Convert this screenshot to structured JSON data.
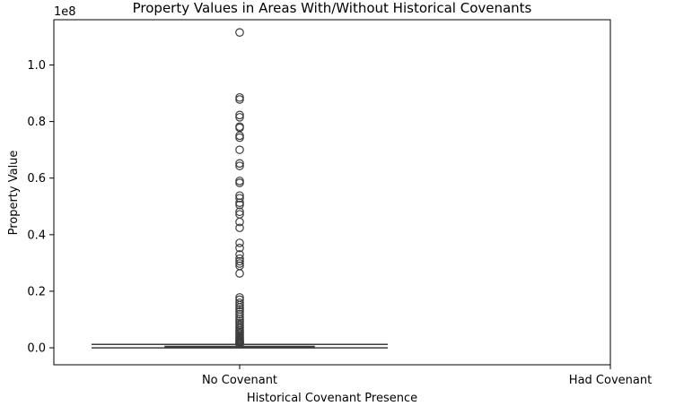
{
  "chart_data": {
    "type": "box",
    "title": "Property Values in Areas With/Without Historical Covenants",
    "xlabel": "Historical Covenant Presence",
    "ylabel": "Property Value",
    "y_offset_label": "1e8",
    "categories": [
      "No Covenant",
      "Had Covenant"
    ],
    "y_tick_labels": [
      "0.0",
      "0.2",
      "0.4",
      "0.6",
      "0.8",
      "1.0"
    ],
    "y_ticks": [
      0.0,
      0.2,
      0.4,
      0.6,
      0.8,
      1.0
    ],
    "y_scale": 100000000,
    "ylim": [
      -6000000,
      116000000
    ],
    "grid": false,
    "boxes": [
      {
        "category": "No Covenant",
        "whisker_low": 0,
        "q1": 100000,
        "median": 250000,
        "q3": 500000,
        "whisker_high": 1200000,
        "outliers": [
          111500000,
          88500000,
          87800000,
          82300000,
          81500000,
          78200000,
          77800000,
          75000000,
          74300000,
          70000000,
          65200000,
          64300000,
          59000000,
          58300000,
          53800000,
          52900000,
          51300000,
          50500000,
          48100000,
          47200000,
          44500000,
          42400000,
          37100000,
          35300000,
          33000000,
          31500000,
          30600000,
          29800000,
          29000000,
          26300000,
          17800000,
          17000000,
          15900000,
          15100000,
          14300000,
          13600000,
          12800000,
          11900000,
          11000000,
          10200000,
          9500000,
          8800000,
          8100000,
          7400000,
          6800000,
          6200000,
          5700000,
          5200000,
          4700000,
          4200000,
          3800000,
          3400000,
          3000000,
          2700000,
          2400000,
          2100000,
          1900000,
          1700000,
          1500000,
          1300000
        ]
      },
      {
        "category": "Had Covenant"
      }
    ],
    "colors": {
      "stroke": "#3d3d3d",
      "box_fill": "#3d3d3d",
      "outlier": "#3d3d3d"
    }
  }
}
